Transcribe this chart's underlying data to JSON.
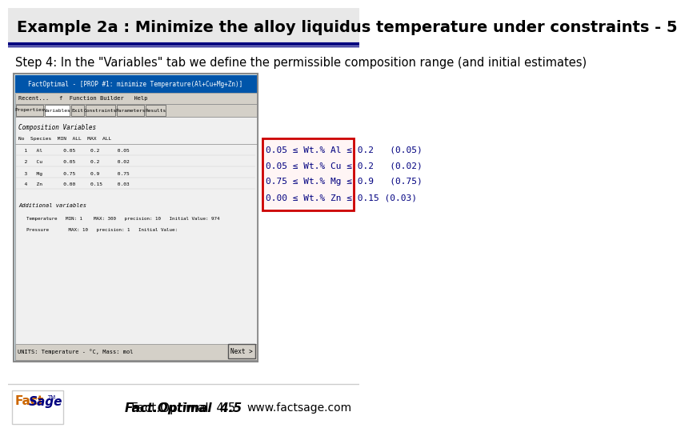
{
  "title": "Example 2a : Minimize the alloy liquidus temperature under constraints - 5",
  "step_text": "Step 4: In the \"Variables\" tab we define the permissible composition range (and initial estimates)",
  "constraints_box": {
    "lines": [
      "0.05 ≤ Wt.% Al ≤ 0.2   (0.05)",
      "0.05 ≤ Wt.% Cu ≤ 0.2   (0.02)",
      "0.75 ≤ Wt.% Mg ≤ 0.9   (0.75)",
      "0.00 ≤ Wt.% Zn ≤ 0.15 (0.03)"
    ],
    "box_color": "#ffcccc",
    "border_color": "#cc0000",
    "text_color": "#000080"
  },
  "footer_left": "Fact.Optimal  4.5",
  "footer_right": "www.factsage.com",
  "title_bg": "#e8e8e8",
  "title_color": "#000000",
  "header_line_color": "#000080",
  "logo_text": "FactSage",
  "background_color": "#ffffff",
  "screenshot_placeholder": true,
  "screenshot_bg": "#d4e8f0",
  "screenshot_border": "#888888"
}
